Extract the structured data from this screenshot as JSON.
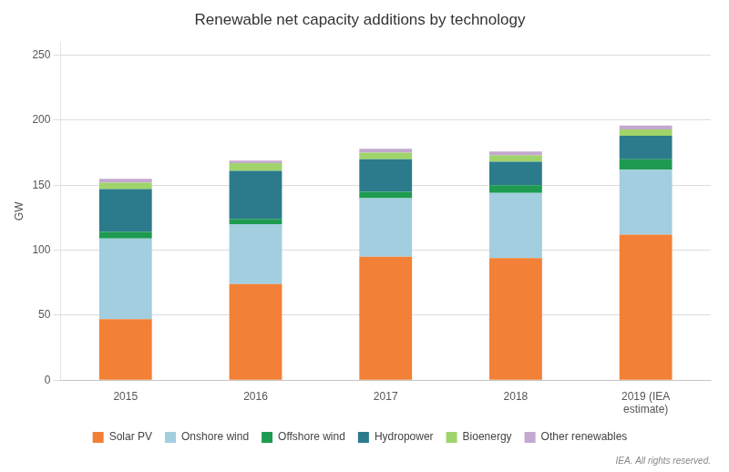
{
  "chart_data": {
    "type": "bar",
    "title": "Renewable net capacity additions by technology",
    "ylabel": "GW",
    "footnote": "IEA. All rights reserved.",
    "categories": [
      "2015",
      "2016",
      "2017",
      "2018",
      "2019 (IEA\nestimate)"
    ],
    "series": [
      {
        "name": "Solar PV",
        "color": "#F28036",
        "values": [
          47,
          74,
          95,
          94,
          112
        ]
      },
      {
        "name": "Onshore wind",
        "color": "#A2CEDF",
        "values": [
          62,
          46,
          45,
          50,
          50
        ]
      },
      {
        "name": "Offshore wind",
        "color": "#1E9B50",
        "values": [
          5,
          4,
          5,
          6,
          8
        ]
      },
      {
        "name": "Hydropower",
        "color": "#2B7B8C",
        "values": [
          33,
          37,
          25,
          18,
          18
        ]
      },
      {
        "name": "Bioenergy",
        "color": "#A0D46A",
        "values": [
          5,
          6,
          5,
          5,
          5
        ]
      },
      {
        "name": "Other renewables",
        "color": "#C4A8D0",
        "values": [
          3,
          2,
          3,
          3,
          3
        ]
      }
    ],
    "stacked": true,
    "ylim": [
      0,
      260
    ],
    "yticks": [
      0,
      50,
      100,
      150,
      200,
      250
    ],
    "grid": true,
    "legend": "bottom"
  }
}
